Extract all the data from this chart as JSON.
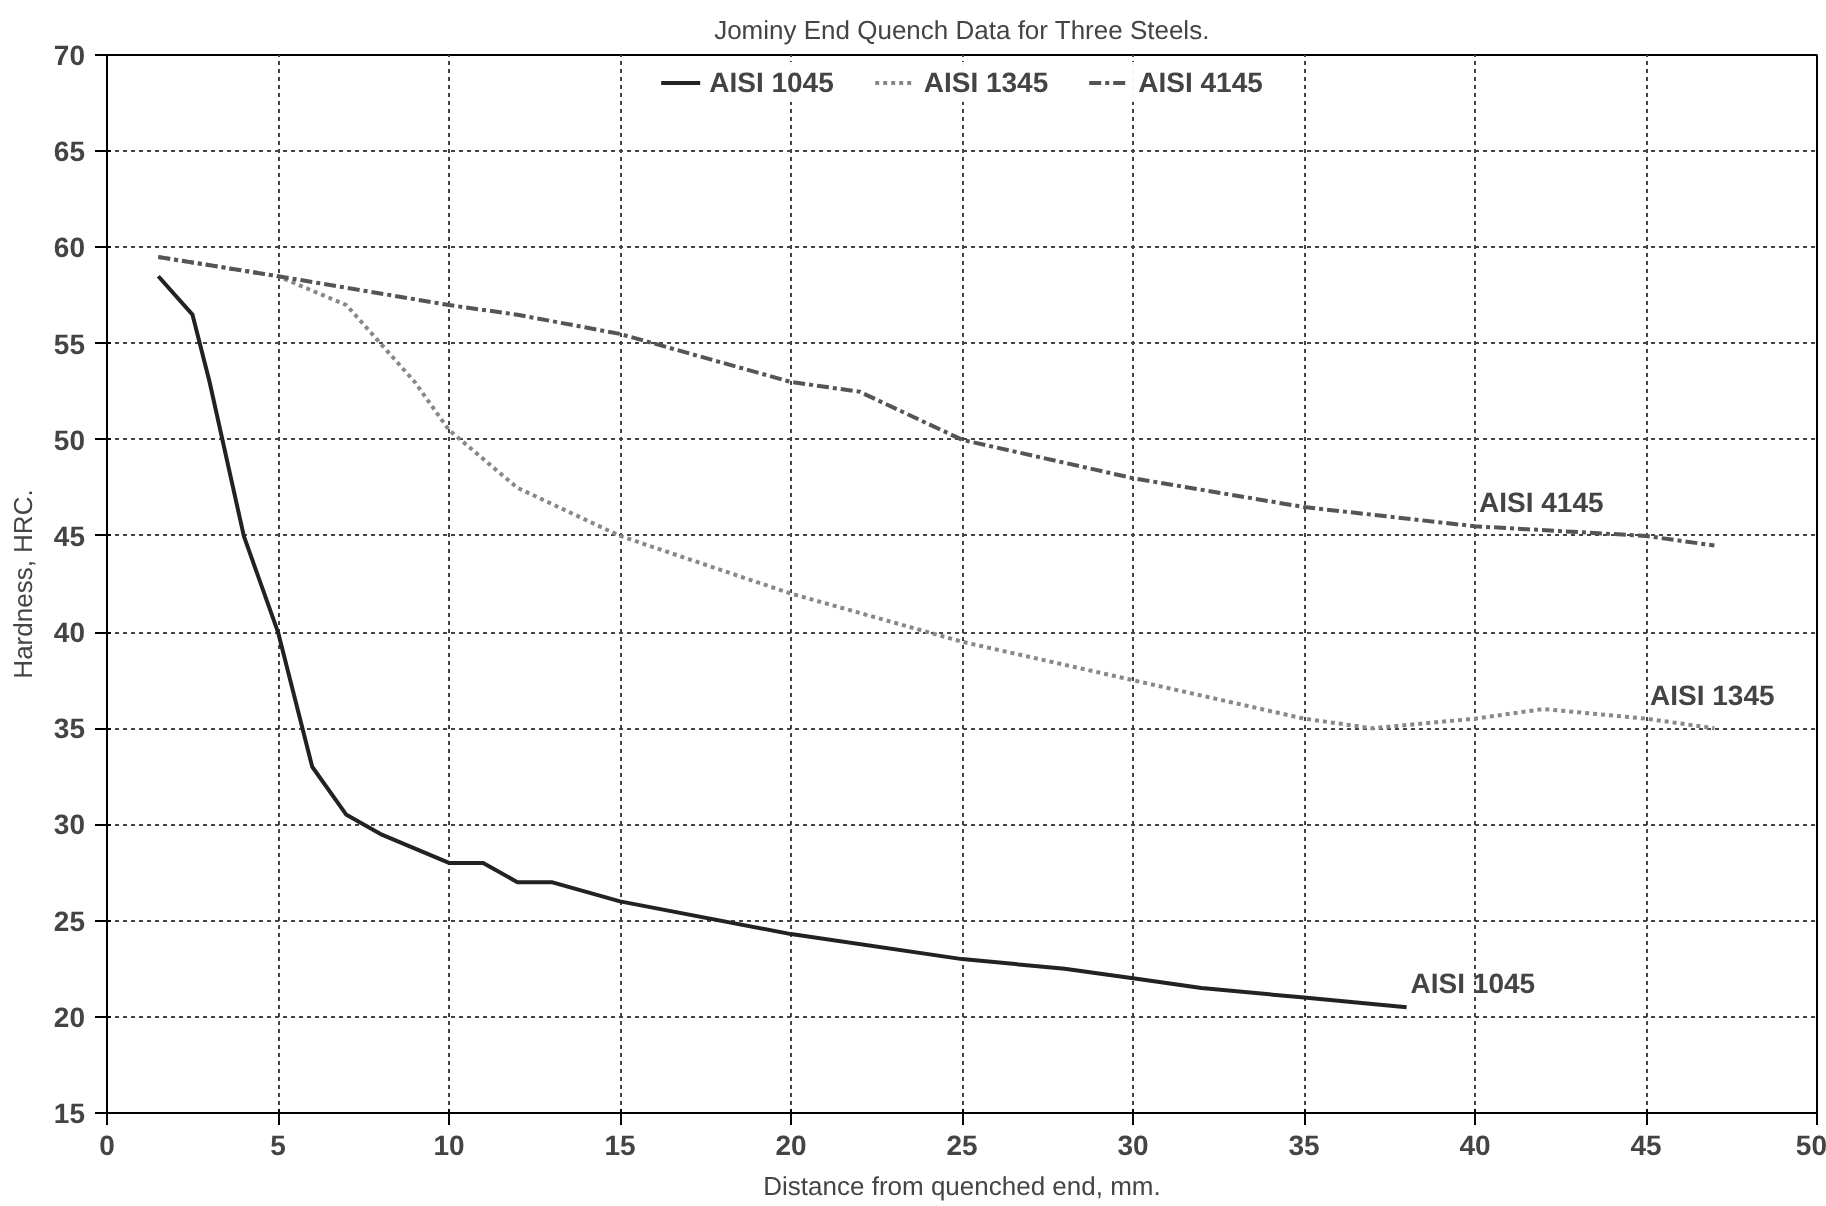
{
  "chart_data": {
    "type": "line",
    "title": "Jominy End Quench Data for Three Steels.",
    "xlabel": "Distance from quenched end, mm.",
    "ylabel": "Hardness, HRC.",
    "xlim": [
      0,
      50
    ],
    "xticks": [
      0,
      5,
      10,
      15,
      20,
      25,
      30,
      35,
      40,
      45,
      50
    ],
    "ylim": [
      15,
      70
    ],
    "yticks": [
      15,
      20,
      25,
      30,
      35,
      40,
      45,
      50,
      55,
      60,
      65,
      70
    ],
    "grid": true,
    "legend": "top",
    "marker": "none",
    "series": [
      {
        "name": "AISI 1045",
        "color": "#222222",
        "line_style": "solid",
        "x": [
          1.5,
          2.5,
          3,
          4,
          5,
          6,
          7,
          8,
          10,
          11,
          12,
          13,
          15,
          20,
          25,
          28,
          30,
          32,
          35,
          38
        ],
        "values": [
          58.5,
          56.5,
          53,
          45,
          40,
          33,
          30.5,
          29.5,
          28,
          28,
          27,
          27,
          26,
          24.3,
          23,
          22.5,
          22,
          21.5,
          21,
          20.5
        ]
      },
      {
        "name": "AISI 1345",
        "color": "#888888",
        "line_style": "dotted",
        "x": [
          1.5,
          5,
          7,
          8,
          9,
          10,
          12,
          15,
          20,
          25,
          30,
          35,
          37,
          40,
          42,
          45,
          47
        ],
        "values": [
          59.5,
          58.5,
          57,
          55,
          53,
          50.5,
          47.5,
          45,
          42,
          39.5,
          37.5,
          35.5,
          35,
          35.5,
          36,
          35.5,
          35
        ]
      },
      {
        "name": "AISI 4145",
        "color": "#555555",
        "line_style": "dashed",
        "x": [
          1.5,
          5,
          10,
          12,
          15,
          20,
          22,
          25,
          30,
          35,
          40,
          45,
          47
        ],
        "values": [
          59.5,
          58.5,
          57,
          56.5,
          55.5,
          53,
          52.5,
          50,
          48,
          46.5,
          45.5,
          45,
          44.5
        ]
      }
    ],
    "annotations": [
      {
        "text": "AISI 4145",
        "x": 40,
        "y": 45.5
      },
      {
        "text": "AISI 1345",
        "x": 45,
        "y": 35.5
      },
      {
        "text": "AISI 1045",
        "x": 38,
        "y": 20.5
      }
    ]
  }
}
